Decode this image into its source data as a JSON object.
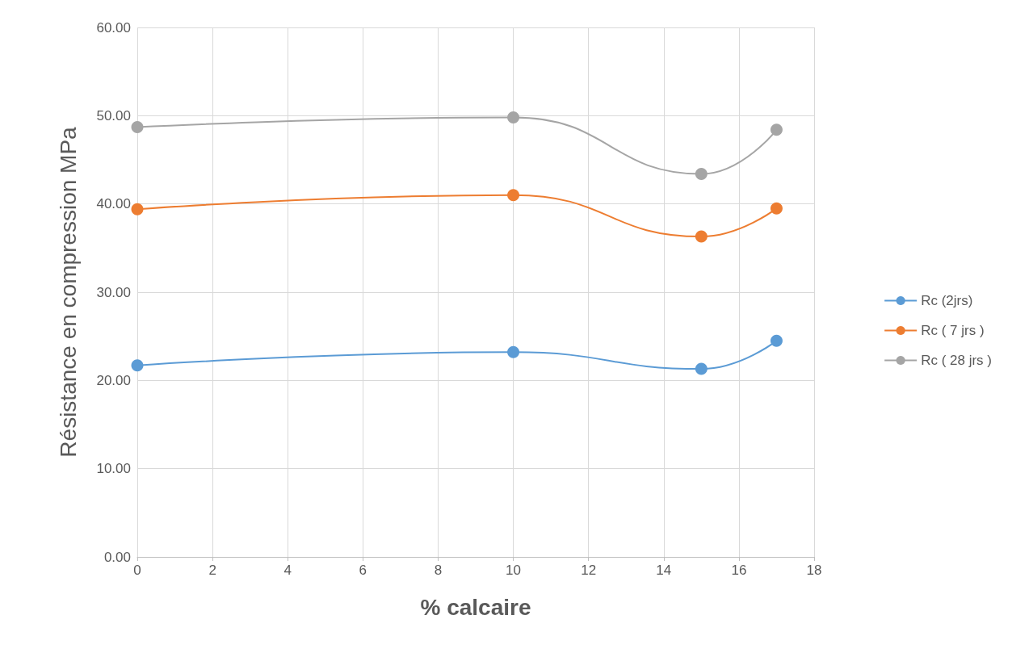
{
  "chart_data": {
    "type": "line",
    "xlabel": "% calcaire",
    "ylabel": "Résistance en compression MPa",
    "x": [
      0,
      10,
      15,
      17
    ],
    "series": [
      {
        "name": "Rc (2jrs)",
        "color": "#5b9bd5",
        "values": [
          21.7,
          23.2,
          21.3,
          24.5
        ]
      },
      {
        "name": "Rc ( 7 jrs )",
        "color": "#ed7d31",
        "values": [
          39.4,
          41.0,
          36.3,
          39.5
        ]
      },
      {
        "name": "Rc ( 28 jrs )",
        "color": "#a5a5a5",
        "values": [
          48.7,
          49.8,
          43.4,
          48.4
        ]
      }
    ],
    "xlim": [
      0,
      18
    ],
    "xticks": [
      0,
      2,
      4,
      6,
      8,
      10,
      12,
      14,
      16,
      18
    ],
    "ylim": [
      0,
      60
    ],
    "yticks": [
      {
        "value": 0,
        "label": "0.00"
      },
      {
        "value": 10,
        "label": "10.00"
      },
      {
        "value": 20,
        "label": "20.00"
      },
      {
        "value": 30,
        "label": "30.00"
      },
      {
        "value": 40,
        "label": "40.00"
      },
      {
        "value": 50,
        "label": "50.00"
      },
      {
        "value": 60,
        "label": "60.00"
      }
    ],
    "grid": true,
    "legend": "right",
    "marker": "circle",
    "line_style": "solid"
  }
}
